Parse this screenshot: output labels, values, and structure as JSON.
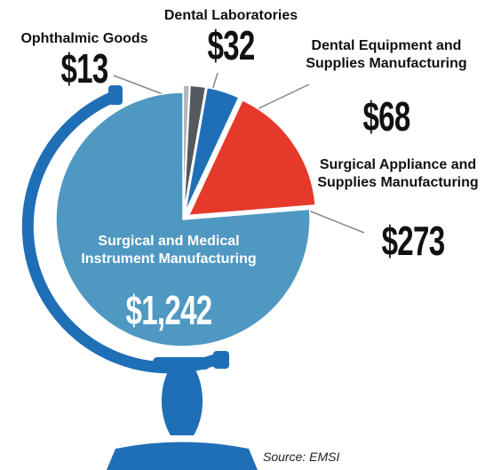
{
  "chart_data": {
    "type": "pie",
    "categories": [
      "Ophthalmic Goods",
      "Dental Laboratories",
      "Dental Equipment and Supplies Manufacturing",
      "Surgical Appliance and Supplies Manufacturing",
      "Surgical and Medical Instrument Manufacturing"
    ],
    "values": [
      13,
      32,
      68,
      273,
      1242
    ],
    "value_labels": [
      "$13",
      "$32",
      "$68",
      "$273",
      "$1,242"
    ],
    "colors": [
      "#b4b7ba",
      "#55595d",
      "#1f6fb7",
      "#e5392b",
      "#4f98c2"
    ],
    "source": "Source: EMSI"
  }
}
